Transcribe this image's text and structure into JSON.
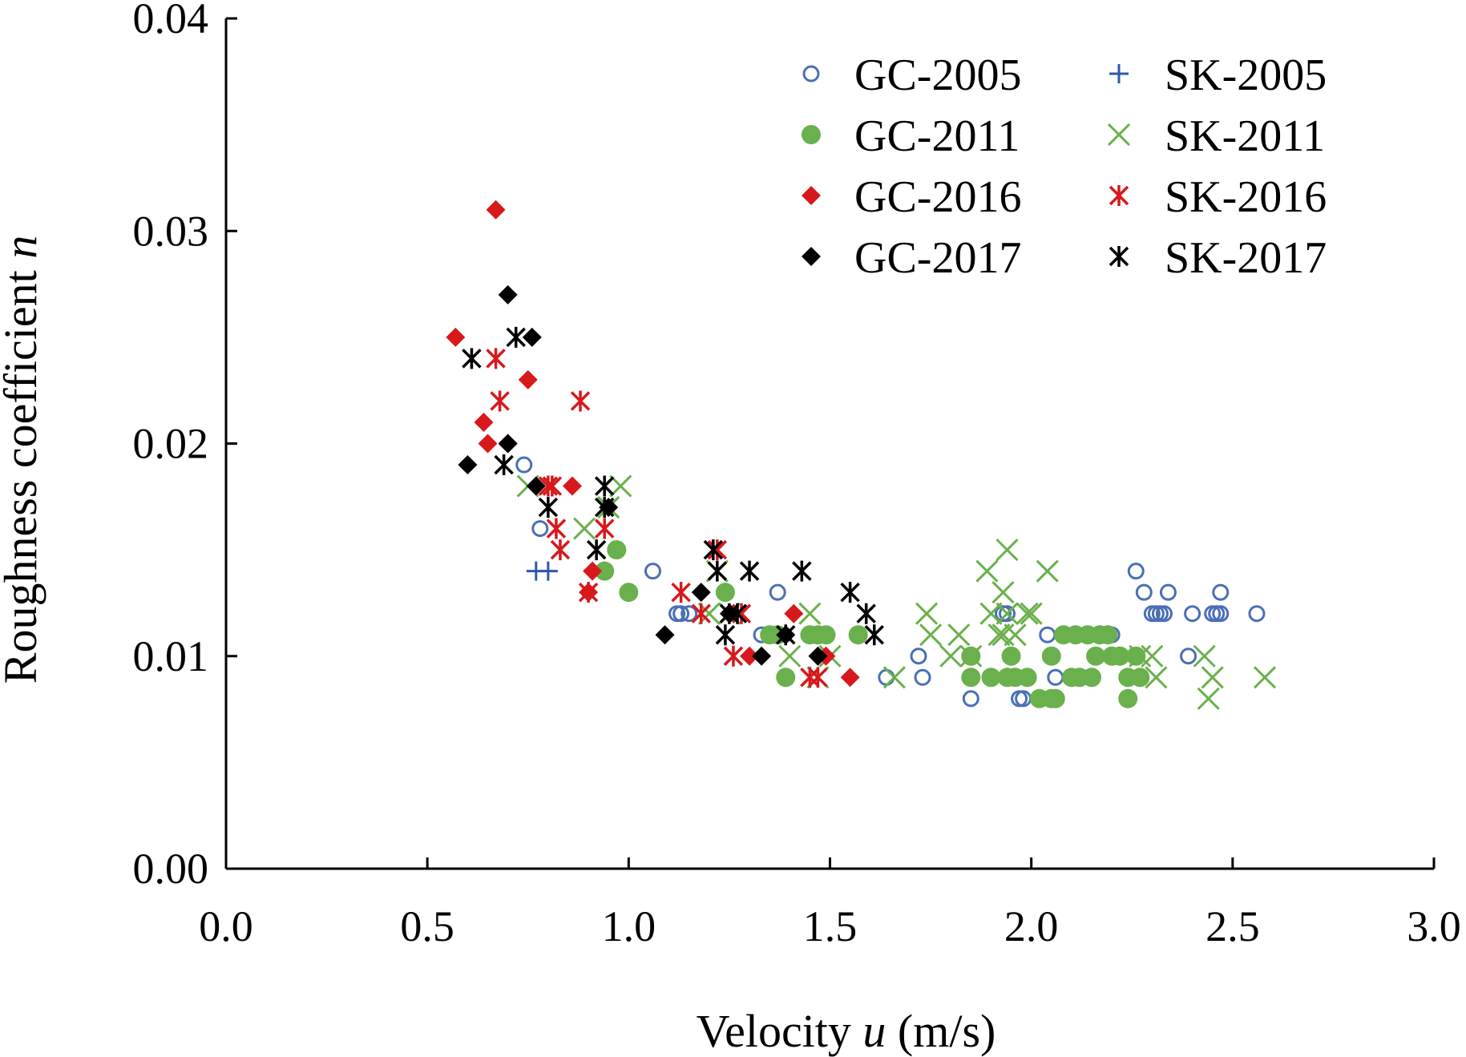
{
  "chart_data": {
    "type": "scatter",
    "xlabel": "Velocity u (m/s)",
    "xlabel_parts": {
      "pre": "Velocity ",
      "var": "u",
      "post": " (m/s)"
    },
    "ylabel": "Roughness coefficient n",
    "ylabel_parts": {
      "pre": "Roughness coefficient ",
      "var": "n"
    },
    "xlim": [
      0,
      3.0
    ],
    "ylim": [
      0,
      0.04
    ],
    "xticks": [
      "0.0",
      "0.5",
      "1.0",
      "1.5",
      "2.0",
      "2.5",
      "3.0"
    ],
    "yticks": [
      "0.00",
      "0.01",
      "0.02",
      "0.03",
      "0.04"
    ],
    "grid": false,
    "legend_position": "top-right",
    "series": [
      {
        "name": "GC-2005",
        "marker": "open-circle",
        "color": "#4a6fb5",
        "x": [
          0.74,
          0.78,
          1.06,
          1.12,
          1.13,
          1.15,
          1.33,
          1.37,
          1.64,
          1.72,
          1.73,
          1.85,
          1.93,
          1.94,
          1.97,
          1.98,
          2.04,
          2.06,
          2.2,
          2.26,
          2.28,
          2.3,
          2.31,
          2.32,
          2.33,
          2.34,
          2.39,
          2.4,
          2.45,
          2.46,
          2.47,
          2.47,
          2.56
        ],
        "y": [
          0.019,
          0.016,
          0.014,
          0.012,
          0.012,
          0.012,
          0.011,
          0.013,
          0.009,
          0.01,
          0.009,
          0.008,
          0.012,
          0.012,
          0.008,
          0.008,
          0.011,
          0.009,
          0.011,
          0.014,
          0.013,
          0.012,
          0.012,
          0.012,
          0.012,
          0.013,
          0.01,
          0.012,
          0.012,
          0.012,
          0.013,
          0.012,
          0.012
        ]
      },
      {
        "name": "SK-2005",
        "marker": "plus",
        "color": "#2f58a8",
        "x": [
          0.77,
          0.8
        ],
        "y": [
          0.014,
          0.014
        ]
      },
      {
        "name": "GC-2011",
        "marker": "filled-circle",
        "color": "#6ab04c",
        "x": [
          0.94,
          0.97,
          1.0,
          1.24,
          1.35,
          1.37,
          1.39,
          1.45,
          1.47,
          1.49,
          1.57,
          1.85,
          1.85,
          1.9,
          1.94,
          1.95,
          1.96,
          1.99,
          2.02,
          2.05,
          2.05,
          2.06,
          2.08,
          2.1,
          2.11,
          2.12,
          2.14,
          2.15,
          2.16,
          2.17,
          2.19,
          2.2,
          2.22,
          2.24,
          2.24,
          2.26,
          2.27
        ],
        "y": [
          0.014,
          0.015,
          0.013,
          0.013,
          0.011,
          0.011,
          0.009,
          0.011,
          0.011,
          0.011,
          0.011,
          0.01,
          0.009,
          0.009,
          0.009,
          0.01,
          0.009,
          0.009,
          0.008,
          0.01,
          0.008,
          0.008,
          0.011,
          0.009,
          0.011,
          0.009,
          0.011,
          0.009,
          0.01,
          0.011,
          0.011,
          0.01,
          0.01,
          0.008,
          0.009,
          0.01,
          0.009
        ]
      },
      {
        "name": "SK-2011",
        "marker": "x-cross",
        "color": "#6ab04c",
        "x": [
          0.75,
          0.89,
          0.95,
          0.98,
          1.2,
          1.22,
          1.25,
          1.4,
          1.45,
          1.47,
          1.5,
          1.66,
          1.74,
          1.75,
          1.8,
          1.82,
          1.85,
          1.89,
          1.9,
          1.92,
          1.93,
          1.93,
          1.94,
          1.94,
          1.96,
          1.99,
          2.0,
          2.04,
          2.27,
          2.3,
          2.31,
          2.43,
          2.44,
          2.45,
          2.58
        ],
        "y": [
          0.018,
          0.016,
          0.017,
          0.018,
          0.012,
          0.014,
          0.012,
          0.01,
          0.012,
          0.009,
          0.01,
          0.009,
          0.012,
          0.011,
          0.01,
          0.011,
          0.01,
          0.014,
          0.012,
          0.011,
          0.013,
          0.011,
          0.015,
          0.012,
          0.011,
          0.012,
          0.012,
          0.014,
          0.01,
          0.01,
          0.009,
          0.01,
          0.008,
          0.009,
          0.009
        ]
      },
      {
        "name": "GC-2016",
        "marker": "filled-diamond",
        "color": "#d7191c",
        "x": [
          0.57,
          0.64,
          0.65,
          0.67,
          0.7,
          0.75,
          0.86,
          0.9,
          0.91,
          1.3,
          1.41,
          1.49,
          1.55
        ],
        "y": [
          0.025,
          0.021,
          0.02,
          0.031,
          0.02,
          0.023,
          0.018,
          0.013,
          0.014,
          0.01,
          0.012,
          0.01,
          0.009
        ]
      },
      {
        "name": "SK-2016",
        "marker": "asterisk",
        "color": "#d7191c",
        "x": [
          0.67,
          0.68,
          0.8,
          0.81,
          0.82,
          0.83,
          0.88,
          0.9,
          0.94,
          1.13,
          1.18,
          1.22,
          1.26,
          1.28,
          1.45,
          1.47
        ],
        "y": [
          0.024,
          0.022,
          0.018,
          0.018,
          0.016,
          0.015,
          0.022,
          0.013,
          0.016,
          0.013,
          0.012,
          0.015,
          0.01,
          0.012,
          0.009,
          0.009
        ]
      },
      {
        "name": "GC-2017",
        "marker": "filled-diamond",
        "color": "#000000",
        "x": [
          0.6,
          0.7,
          0.7,
          0.76,
          0.77,
          0.95,
          1.09,
          1.18,
          1.25,
          1.33,
          1.39,
          1.47
        ],
        "y": [
          0.019,
          0.027,
          0.02,
          0.025,
          0.018,
          0.017,
          0.011,
          0.013,
          0.012,
          0.01,
          0.011,
          0.01
        ]
      },
      {
        "name": "SK-2017",
        "marker": "asterisk",
        "color": "#000000",
        "x": [
          0.61,
          0.69,
          0.72,
          0.8,
          0.92,
          0.94,
          0.94,
          1.21,
          1.22,
          1.24,
          1.25,
          1.27,
          1.3,
          1.39,
          1.43,
          1.55,
          1.59,
          1.61
        ],
        "y": [
          0.024,
          0.019,
          0.025,
          0.017,
          0.015,
          0.017,
          0.018,
          0.015,
          0.014,
          0.011,
          0.012,
          0.012,
          0.014,
          0.011,
          0.014,
          0.013,
          0.012,
          0.011
        ]
      }
    ],
    "legend_order": [
      "GC-2005",
      "SK-2005",
      "GC-2011",
      "SK-2011",
      "GC-2016",
      "SK-2016",
      "GC-2017",
      "SK-2017"
    ]
  }
}
